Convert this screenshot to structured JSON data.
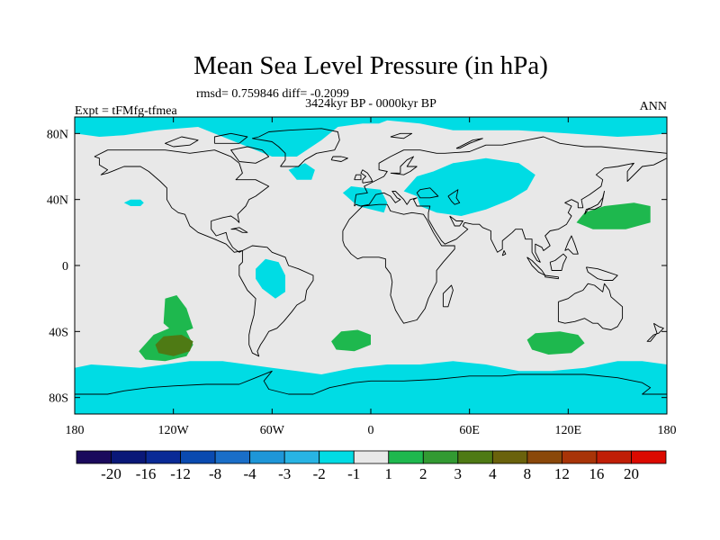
{
  "chart_data": {
    "type": "heatmap",
    "title": "Mean Sea Level Pressure (in hPa)",
    "stats_text": "rmsd= 0.759846 diff= -0.2099",
    "period": "3424kyr BP - 0000kyr BP",
    "experiment": "Expt = tFMfg-tfmea",
    "season": "ANN",
    "xlim": [
      -180,
      180
    ],
    "ylim": [
      -90,
      90
    ],
    "x_ticks": [
      {
        "value": -180,
        "label": "180"
      },
      {
        "value": -120,
        "label": "120W"
      },
      {
        "value": -60,
        "label": "60W"
      },
      {
        "value": 0,
        "label": "0"
      },
      {
        "value": 60,
        "label": "60E"
      },
      {
        "value": 120,
        "label": "120E"
      },
      {
        "value": 180,
        "label": "180"
      }
    ],
    "y_ticks": [
      {
        "value": 80,
        "label": "80N"
      },
      {
        "value": 40,
        "label": "40N"
      },
      {
        "value": 0,
        "label": "0"
      },
      {
        "value": -40,
        "label": "40S"
      },
      {
        "value": -80,
        "label": "80S"
      }
    ],
    "background_color": "#e8e8e8",
    "colorbar": {
      "colors": [
        "#1a0a5c",
        "#0a1878",
        "#0a2a96",
        "#0a4ab0",
        "#1a6ec8",
        "#1e96d8",
        "#28b4e4",
        "#00dce4",
        "#e8e8e8",
        "#1eb84e",
        "#329a32",
        "#4e7a14",
        "#6a620c",
        "#8a480a",
        "#a83408",
        "#c01e06",
        "#dc0a00"
      ],
      "labels": [
        "-20",
        "-16",
        "-12",
        "-8",
        "-4",
        "-3",
        "-2",
        "-1",
        "1",
        "2",
        "3",
        "4",
        "8",
        "12",
        "16",
        "20"
      ]
    },
    "anomaly_regions": [
      {
        "name": "arctic-canada",
        "level": "-2 to -1",
        "color": "#00dce4",
        "points": [
          [
            -180,
            90
          ],
          [
            -180,
            80
          ],
          [
            -165,
            78
          ],
          [
            -150,
            79
          ],
          [
            -130,
            82
          ],
          [
            -105,
            84
          ],
          [
            -90,
            78
          ],
          [
            -75,
            72
          ],
          [
            -60,
            66
          ],
          [
            -45,
            66
          ],
          [
            -30,
            76
          ],
          [
            -20,
            84
          ],
          [
            -5,
            86
          ],
          [
            5,
            86
          ],
          [
            10,
            88
          ],
          [
            30,
            86
          ],
          [
            50,
            82
          ],
          [
            90,
            82
          ],
          [
            120,
            80
          ],
          [
            150,
            78
          ],
          [
            170,
            79
          ],
          [
            180,
            80
          ],
          [
            180,
            90
          ]
        ]
      },
      {
        "name": "labrador",
        "level": "-2 to -1",
        "color": "#00dce4",
        "points": [
          [
            -50,
            58
          ],
          [
            -45,
            52
          ],
          [
            -36,
            52
          ],
          [
            -34,
            58
          ],
          [
            -40,
            62
          ]
        ]
      },
      {
        "name": "east-pacific-spot",
        "level": "-2 to -1",
        "color": "#00dce4",
        "points": [
          [
            -150,
            38
          ],
          [
            -146,
            36
          ],
          [
            -140,
            36
          ],
          [
            -138,
            38
          ],
          [
            -140,
            40
          ],
          [
            -146,
            40
          ]
        ]
      },
      {
        "name": "europe-spain",
        "level": "-2 to -1",
        "color": "#00dce4",
        "points": [
          [
            -17,
            44
          ],
          [
            -8,
            36
          ],
          [
            8,
            32
          ],
          [
            10,
            38
          ],
          [
            6,
            46
          ],
          [
            -4,
            47
          ],
          [
            -12,
            48
          ]
        ]
      },
      {
        "name": "central-asia",
        "level": "-2 to -1",
        "color": "#00dce4",
        "points": [
          [
            20,
            45
          ],
          [
            28,
            42
          ],
          [
            30,
            36
          ],
          [
            40,
            32
          ],
          [
            55,
            30
          ],
          [
            70,
            34
          ],
          [
            85,
            40
          ],
          [
            95,
            46
          ],
          [
            100,
            55
          ],
          [
            90,
            62
          ],
          [
            70,
            65
          ],
          [
            50,
            62
          ],
          [
            38,
            57
          ],
          [
            28,
            54
          ]
        ]
      },
      {
        "name": "amazon",
        "level": "-2 to -1",
        "color": "#00dce4",
        "points": [
          [
            -70,
            -2
          ],
          [
            -64,
            4
          ],
          [
            -56,
            2
          ],
          [
            -52,
            -6
          ],
          [
            -52,
            -16
          ],
          [
            -58,
            -20
          ],
          [
            -66,
            -14
          ],
          [
            -70,
            -8
          ]
        ]
      },
      {
        "name": "southern-ocean",
        "level": "-2 to -1",
        "color": "#00dce4",
        "points": [
          [
            -180,
            -90
          ],
          [
            -180,
            -62
          ],
          [
            -170,
            -60
          ],
          [
            -140,
            -62
          ],
          [
            -110,
            -58
          ],
          [
            -90,
            -58
          ],
          [
            -75,
            -60
          ],
          [
            -60,
            -62
          ],
          [
            -45,
            -64
          ],
          [
            -30,
            -66
          ],
          [
            -10,
            -62
          ],
          [
            10,
            -60
          ],
          [
            30,
            -60
          ],
          [
            50,
            -58
          ],
          [
            70,
            -60
          ],
          [
            90,
            -64
          ],
          [
            110,
            -64
          ],
          [
            130,
            -62
          ],
          [
            150,
            -58
          ],
          [
            165,
            -58
          ],
          [
            180,
            -60
          ],
          [
            180,
            -90
          ]
        ]
      },
      {
        "name": "south-pacific-high",
        "level": "1 to 2",
        "color": "#1eb84e",
        "points": [
          [
            -141,
            -52
          ],
          [
            -132,
            -42
          ],
          [
            -120,
            -37
          ],
          [
            -112,
            -40
          ],
          [
            -108,
            -48
          ],
          [
            -112,
            -55
          ],
          [
            -125,
            -58
          ],
          [
            -137,
            -57
          ]
        ]
      },
      {
        "name": "south-pacific-tail",
        "level": "1 to 2",
        "color": "#1eb84e",
        "points": [
          [
            -126,
            -35
          ],
          [
            -125,
            -20
          ],
          [
            -118,
            -18
          ],
          [
            -112,
            -26
          ],
          [
            -108,
            -38
          ],
          [
            -118,
            -42
          ]
        ]
      },
      {
        "name": "south-pacific-core",
        "level": "3 to 4",
        "color": "#4e7a14",
        "points": [
          [
            -131,
            -48
          ],
          [
            -126,
            -43
          ],
          [
            -115,
            -42
          ],
          [
            -108,
            -46
          ],
          [
            -110,
            -52
          ],
          [
            -120,
            -55
          ],
          [
            -129,
            -53
          ]
        ]
      },
      {
        "name": "south-atlantic-high",
        "level": "1 to 2",
        "color": "#1eb84e",
        "points": [
          [
            -24,
            -46
          ],
          [
            -18,
            -40
          ],
          [
            -8,
            -39
          ],
          [
            0,
            -42
          ],
          [
            0,
            -48
          ],
          [
            -10,
            -52
          ],
          [
            -21,
            -51
          ]
        ]
      },
      {
        "name": "indian-ocean-high",
        "level": "1 to 2",
        "color": "#1eb84e",
        "points": [
          [
            95,
            -45
          ],
          [
            100,
            -41
          ],
          [
            115,
            -40
          ],
          [
            126,
            -42
          ],
          [
            130,
            -47
          ],
          [
            122,
            -53
          ],
          [
            108,
            -54
          ],
          [
            98,
            -51
          ]
        ]
      },
      {
        "name": "north-pacific-high",
        "level": "1 to 2",
        "color": "#1eb84e",
        "points": [
          [
            125,
            26
          ],
          [
            130,
            32
          ],
          [
            142,
            36
          ],
          [
            160,
            38
          ],
          [
            170,
            36
          ],
          [
            170,
            26
          ],
          [
            155,
            22
          ],
          [
            135,
            22
          ]
        ]
      }
    ]
  }
}
